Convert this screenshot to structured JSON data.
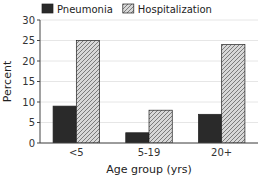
{
  "chart_data": {
    "type": "bar",
    "categories": [
      "<5",
      "5-19",
      "20+"
    ],
    "series": [
      {
        "name": "Pneumonia",
        "color": "#2a2a2a",
        "values": [
          9,
          2.5,
          7
        ]
      },
      {
        "name": "Hospitalization",
        "color": "#d8d8d8",
        "values": [
          25,
          8,
          24
        ]
      }
    ],
    "xlabel": "Age group (yrs)",
    "ylabel": "Percent",
    "ylim": [
      0,
      30
    ],
    "yticks": [
      0,
      5,
      10,
      15,
      20,
      25,
      30
    ],
    "legend": "upper left"
  }
}
